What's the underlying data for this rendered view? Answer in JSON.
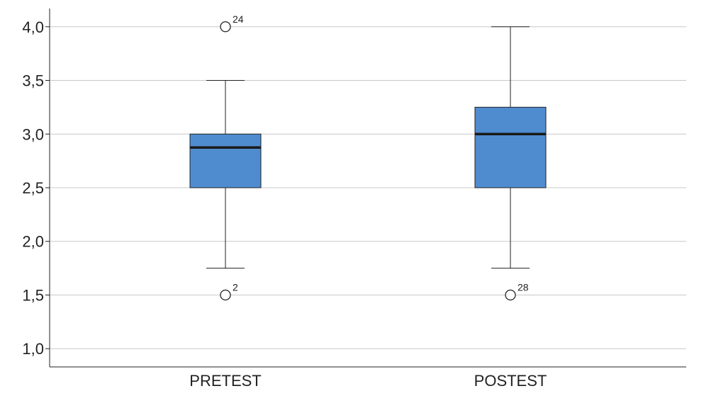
{
  "chart_data": {
    "type": "boxplot",
    "title": "",
    "xlabel": "",
    "ylabel": "",
    "ylim": [
      0.83,
      4.17
    ],
    "yticks": [
      1.0,
      1.5,
      2.0,
      2.5,
      3.0,
      3.5,
      4.0
    ],
    "ytick_labels": [
      "1,0",
      "1,5",
      "2,0",
      "2,5",
      "3,0",
      "3,5",
      "4,0"
    ],
    "grid": true,
    "categories": [
      "PRETEST",
      "POSTEST"
    ],
    "boxes": [
      {
        "category": "PRETEST",
        "whisker_low": 1.75,
        "q1": 2.5,
        "median": 2.875,
        "q3": 3.0,
        "whisker_high": 3.5,
        "outliers": [
          {
            "value": 4.0,
            "label": "24"
          },
          {
            "value": 1.5,
            "label": "2"
          }
        ]
      },
      {
        "category": "POSTEST",
        "whisker_low": 1.75,
        "q1": 2.5,
        "median": 3.0,
        "q3": 3.25,
        "whisker_high": 4.0,
        "outliers": [
          {
            "value": 1.5,
            "label": "28"
          }
        ]
      }
    ],
    "colors": {
      "box_fill": "#4f8ccf",
      "box_stroke": "#222222",
      "median": "#1a1a1a",
      "grid": "#c8c8c8",
      "axis": "#222222"
    }
  }
}
